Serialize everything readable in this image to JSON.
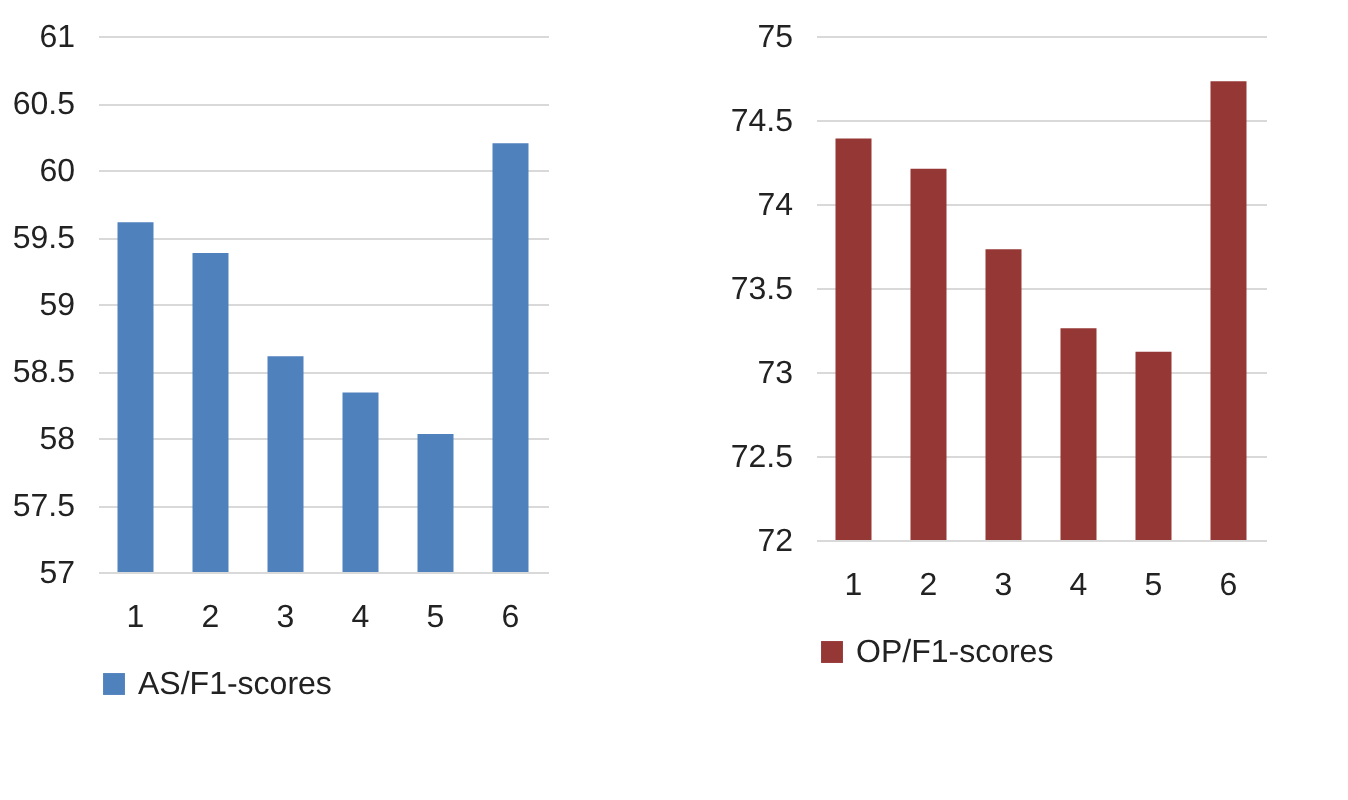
{
  "chart_data": [
    {
      "type": "bar",
      "categories": [
        "1",
        "2",
        "3",
        "4",
        "5",
        "6"
      ],
      "series": [
        {
          "name": "AS/F1-scores",
          "color": "#4f81bd",
          "values": [
            59.61,
            59.38,
            58.61,
            58.34,
            58.03,
            60.2
          ]
        }
      ],
      "ylim": [
        57,
        61
      ],
      "yticks": [
        57,
        57.5,
        58,
        58.5,
        59,
        59.5,
        60,
        60.5,
        61
      ],
      "grid": "y",
      "legend": "bottom"
    },
    {
      "type": "bar",
      "categories": [
        "1",
        "2",
        "3",
        "4",
        "5",
        "6"
      ],
      "series": [
        {
          "name": "OP/F1-scores",
          "color": "#953735",
          "values": [
            74.39,
            74.21,
            73.73,
            73.26,
            73.12,
            74.73
          ]
        }
      ],
      "ylim": [
        72,
        75
      ],
      "yticks": [
        72,
        72.5,
        73,
        73.5,
        74,
        74.5,
        75
      ],
      "grid": "y",
      "legend": "bottom"
    }
  ]
}
